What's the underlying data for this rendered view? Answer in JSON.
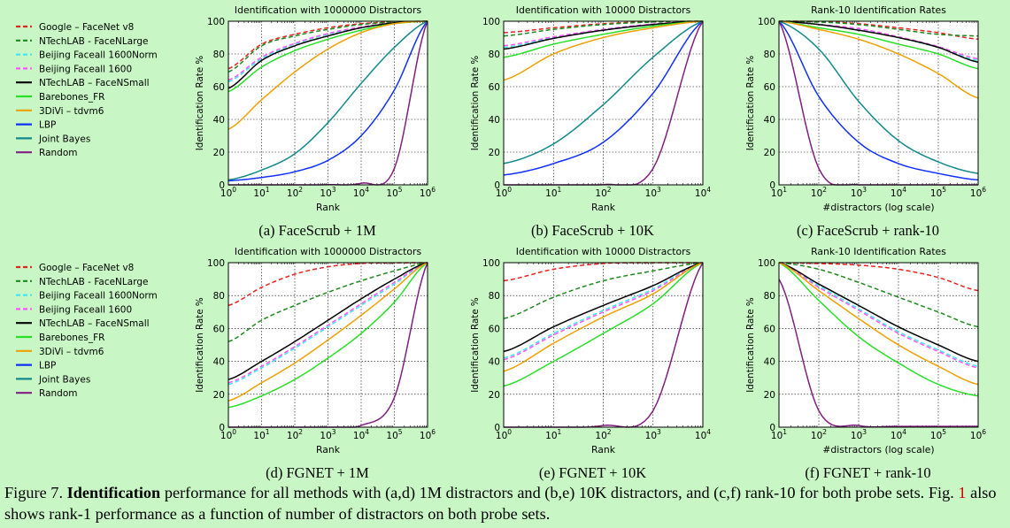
{
  "colors": {
    "google": "#e8231f",
    "ntechlarge": "#1c8a1c",
    "norm": "#3fe8f0",
    "faceall": "#ff55ff",
    "ntechsmall": "#000000",
    "barebones": "#28e028",
    "divi": "#f0a000",
    "lbp": "#1030ff",
    "jb": "#12898a",
    "random": "#802080"
  },
  "legend": [
    {
      "key": "google",
      "name": "Google – FaceNet v8",
      "dash": true
    },
    {
      "key": "ntechlarge",
      "name": "NTechLAB - FaceNLarge",
      "dash": true
    },
    {
      "key": "norm",
      "name": "Beijing Faceall 1600Norm",
      "dash": true
    },
    {
      "key": "faceall",
      "name": "Beijing Faceall 1600",
      "dash": true
    },
    {
      "key": "ntechsmall",
      "name": "NTechLAB – FaceNSmall",
      "dash": false
    },
    {
      "key": "barebones",
      "name": "Barebones_FR",
      "dash": false
    },
    {
      "key": "divi",
      "name": "3DiVi – tdvm6",
      "dash": false
    },
    {
      "key": "lbp",
      "name": "LBP",
      "dash": false
    },
    {
      "key": "jb",
      "name": "Joint Bayes",
      "dash": false
    },
    {
      "key": "random",
      "name": "Random",
      "dash": false
    }
  ],
  "caption": {
    "label": "Figure 7.",
    "bold": "Identification",
    "text1": "performance for all methods with (a,d) 1M distractors and (b,e) 10K distractors, and (c,f) rank-10 for both probe sets. Fig.",
    "ref": "1",
    "text2": "also shows rank-1 performance as a function of number of distractors on both probe sets."
  },
  "chart_data": [
    {
      "type": "line",
      "id": "a",
      "title": "Identification with 1000000 Distractors",
      "subcaption": "(a) FaceScrub + 1M",
      "xlabel": "Rank",
      "ylabel": "Identification Rate %",
      "xscale": "log",
      "xlim_exp": [
        0,
        6
      ],
      "ylim": [
        0,
        100
      ],
      "x": [
        1,
        10,
        100,
        1000,
        10000,
        100000,
        1000000
      ],
      "series": [
        {
          "key": "google",
          "values": [
            71,
            86,
            92,
            96,
            98.5,
            99.6,
            100
          ]
        },
        {
          "key": "ntechlarge",
          "values": [
            69,
            85,
            91,
            95,
            98,
            99.5,
            100
          ]
        },
        {
          "key": "norm",
          "values": [
            63,
            77,
            86,
            92,
            96,
            99,
            100
          ]
        },
        {
          "key": "faceall",
          "values": [
            64,
            78,
            86.5,
            92.5,
            96.5,
            99,
            100
          ]
        },
        {
          "key": "ntechsmall",
          "values": [
            59,
            76,
            85,
            91,
            96,
            99,
            100
          ]
        },
        {
          "key": "barebones",
          "values": [
            57,
            72,
            82,
            89,
            94.5,
            98.5,
            100
          ]
        },
        {
          "key": "divi",
          "values": [
            34,
            52,
            69,
            83,
            93,
            98.5,
            100
          ]
        },
        {
          "key": "lbp",
          "values": [
            2.5,
            4.5,
            8,
            15,
            30,
            58,
            100
          ]
        },
        {
          "key": "jb",
          "values": [
            3,
            9,
            19,
            38,
            62,
            84,
            100
          ]
        },
        {
          "key": "random",
          "values": [
            0,
            0,
            0,
            0.1,
            1,
            10,
            100
          ]
        }
      ]
    },
    {
      "type": "line",
      "id": "b",
      "title": "Identification with 10000 Distractors",
      "subcaption": "(b) FaceScrub + 10K",
      "xlabel": "Rank",
      "ylabel": "Identification Rate %",
      "xscale": "log",
      "xlim_exp": [
        0,
        4
      ],
      "ylim": [
        0,
        100
      ],
      "x": [
        1,
        10,
        100,
        1000,
        10000
      ],
      "series": [
        {
          "key": "google",
          "values": [
            93,
            96,
            98.5,
            99.7,
            100
          ]
        },
        {
          "key": "ntechlarge",
          "values": [
            91,
            95,
            98,
            99.5,
            100
          ]
        },
        {
          "key": "norm",
          "values": [
            84,
            90,
            95,
            98,
            100
          ]
        },
        {
          "key": "faceall",
          "values": [
            85,
            90.5,
            95,
            98.3,
            100
          ]
        },
        {
          "key": "ntechsmall",
          "values": [
            83,
            89.5,
            94.5,
            98,
            100
          ]
        },
        {
          "key": "barebones",
          "values": [
            78,
            86,
            92,
            97,
            100
          ]
        },
        {
          "key": "divi",
          "values": [
            64,
            80,
            90,
            96,
            100
          ]
        },
        {
          "key": "lbp",
          "values": [
            6,
            13,
            26,
            56,
            100
          ]
        },
        {
          "key": "jb",
          "values": [
            13,
            25,
            49,
            78,
            100
          ]
        },
        {
          "key": "random",
          "values": [
            0,
            0,
            0.1,
            10,
            100
          ]
        }
      ]
    },
    {
      "type": "line",
      "id": "c",
      "title": "Rank-10 Identification Rates",
      "subcaption": "(c) FaceScrub + rank-10",
      "xlabel": "#distractors (log scale)",
      "ylabel": "Identification Rate %",
      "xscale": "log",
      "xlim_exp": [
        1,
        6
      ],
      "ylim": [
        0,
        100
      ],
      "x": [
        10,
        100,
        1000,
        10000,
        100000,
        1000000
      ],
      "series": [
        {
          "key": "google",
          "values": [
            100,
            99.8,
            98.5,
            96,
            93,
            89
          ]
        },
        {
          "key": "ntechlarge",
          "values": [
            100,
            99.5,
            98,
            95,
            92,
            91
          ]
        },
        {
          "key": "norm",
          "values": [
            100,
            98,
            95,
            90,
            84,
            76
          ]
        },
        {
          "key": "faceall",
          "values": [
            100,
            98,
            95.5,
            90.5,
            84.5,
            77
          ]
        },
        {
          "key": "ntechsmall",
          "values": [
            100,
            98,
            94.5,
            90,
            84,
            75
          ]
        },
        {
          "key": "barebones",
          "values": [
            100,
            96,
            92,
            86,
            80,
            71
          ]
        },
        {
          "key": "divi",
          "values": [
            100,
            95,
            89,
            80,
            68,
            53
          ]
        },
        {
          "key": "lbp",
          "values": [
            100,
            54,
            26,
            13,
            7,
            3
          ]
        },
        {
          "key": "jb",
          "values": [
            100,
            83,
            51,
            27,
            14,
            7
          ]
        },
        {
          "key": "random",
          "values": [
            100,
            10,
            0,
            0,
            0,
            0
          ]
        }
      ]
    },
    {
      "type": "line",
      "id": "d",
      "title": "Identification with 1000000 Distractors",
      "subcaption": "(d) FGNET + 1M",
      "xlabel": "Rank",
      "ylabel": "Identification Rate %",
      "xscale": "log",
      "xlim_exp": [
        0,
        6
      ],
      "ylim": [
        0,
        100
      ],
      "x": [
        1,
        10,
        100,
        1000,
        10000,
        100000,
        1000000
      ],
      "series": [
        {
          "key": "google",
          "values": [
            74,
            85,
            93,
            97.5,
            99.5,
            99.9,
            100
          ]
        },
        {
          "key": "ntechlarge",
          "values": [
            52,
            65,
            74,
            82,
            89,
            95,
            100
          ]
        },
        {
          "key": "norm",
          "values": [
            26,
            36,
            48,
            61,
            74,
            87,
            100
          ]
        },
        {
          "key": "faceall",
          "values": [
            27,
            37,
            49,
            62,
            75,
            88,
            100
          ]
        },
        {
          "key": "ntechsmall",
          "values": [
            29,
            40,
            52,
            65,
            78,
            90,
            100
          ]
        },
        {
          "key": "barebones",
          "values": [
            12,
            19,
            29,
            42,
            57,
            76,
            100
          ]
        },
        {
          "key": "divi",
          "values": [
            16,
            27,
            39,
            53,
            68,
            84,
            100
          ]
        },
        {
          "key": "random",
          "values": [
            0,
            0,
            0,
            0,
            1,
            18,
            100
          ]
        }
      ]
    },
    {
      "type": "line",
      "id": "e",
      "title": "Identification with 10000 Distractors",
      "subcaption": "(e) FGNET + 10K",
      "xlabel": "Rank",
      "ylabel": "Identification Rate %",
      "xscale": "log",
      "xlim_exp": [
        0,
        4
      ],
      "ylim": [
        0,
        100
      ],
      "x": [
        1,
        10,
        100,
        1000,
        10000
      ],
      "series": [
        {
          "key": "google",
          "values": [
            89,
            96,
            99.5,
            100,
            100
          ]
        },
        {
          "key": "ntechlarge",
          "values": [
            66,
            79,
            89,
            95,
            100
          ]
        },
        {
          "key": "norm",
          "values": [
            42,
            57,
            71,
            84,
            100
          ]
        },
        {
          "key": "faceall",
          "values": [
            41,
            56,
            70,
            83,
            100
          ]
        },
        {
          "key": "ntechsmall",
          "values": [
            46,
            61,
            74,
            86,
            100
          ]
        },
        {
          "key": "barebones",
          "values": [
            25,
            40,
            57,
            75,
            100
          ]
        },
        {
          "key": "divi",
          "values": [
            34,
            51,
            67,
            81,
            100
          ]
        },
        {
          "key": "random",
          "values": [
            0,
            0,
            1,
            10,
            100
          ]
        }
      ]
    },
    {
      "type": "line",
      "id": "f",
      "title": "Rank-10 Identification Rates",
      "subcaption": "(f) FGNET + rank-10",
      "xlabel": "#distractors (log scale)",
      "ylabel": "Identification Rate %",
      "xscale": "log",
      "xlim_exp": [
        1,
        6
      ],
      "ylim": [
        0,
        100
      ],
      "x": [
        10,
        100,
        1000,
        10000,
        100000,
        1000000
      ],
      "series": [
        {
          "key": "google",
          "values": [
            100,
            99.5,
            98.5,
            96,
            91,
            83
          ]
        },
        {
          "key": "ntechlarge",
          "values": [
            100,
            96,
            88,
            79,
            70,
            61
          ]
        },
        {
          "key": "norm",
          "values": [
            100,
            86,
            72,
            58,
            47,
            37
          ]
        },
        {
          "key": "faceall",
          "values": [
            100,
            85,
            71,
            57,
            46,
            36
          ]
        },
        {
          "key": "ntechsmall",
          "values": [
            100,
            87,
            74,
            61,
            50,
            40
          ]
        },
        {
          "key": "barebones",
          "values": [
            100,
            77,
            55,
            39,
            26,
            19
          ]
        },
        {
          "key": "divi",
          "values": [
            100,
            83,
            66,
            50,
            37,
            26
          ]
        },
        {
          "key": "random",
          "values": [
            90,
            10,
            1,
            0.5,
            0.5,
            0.5
          ]
        }
      ]
    }
  ]
}
